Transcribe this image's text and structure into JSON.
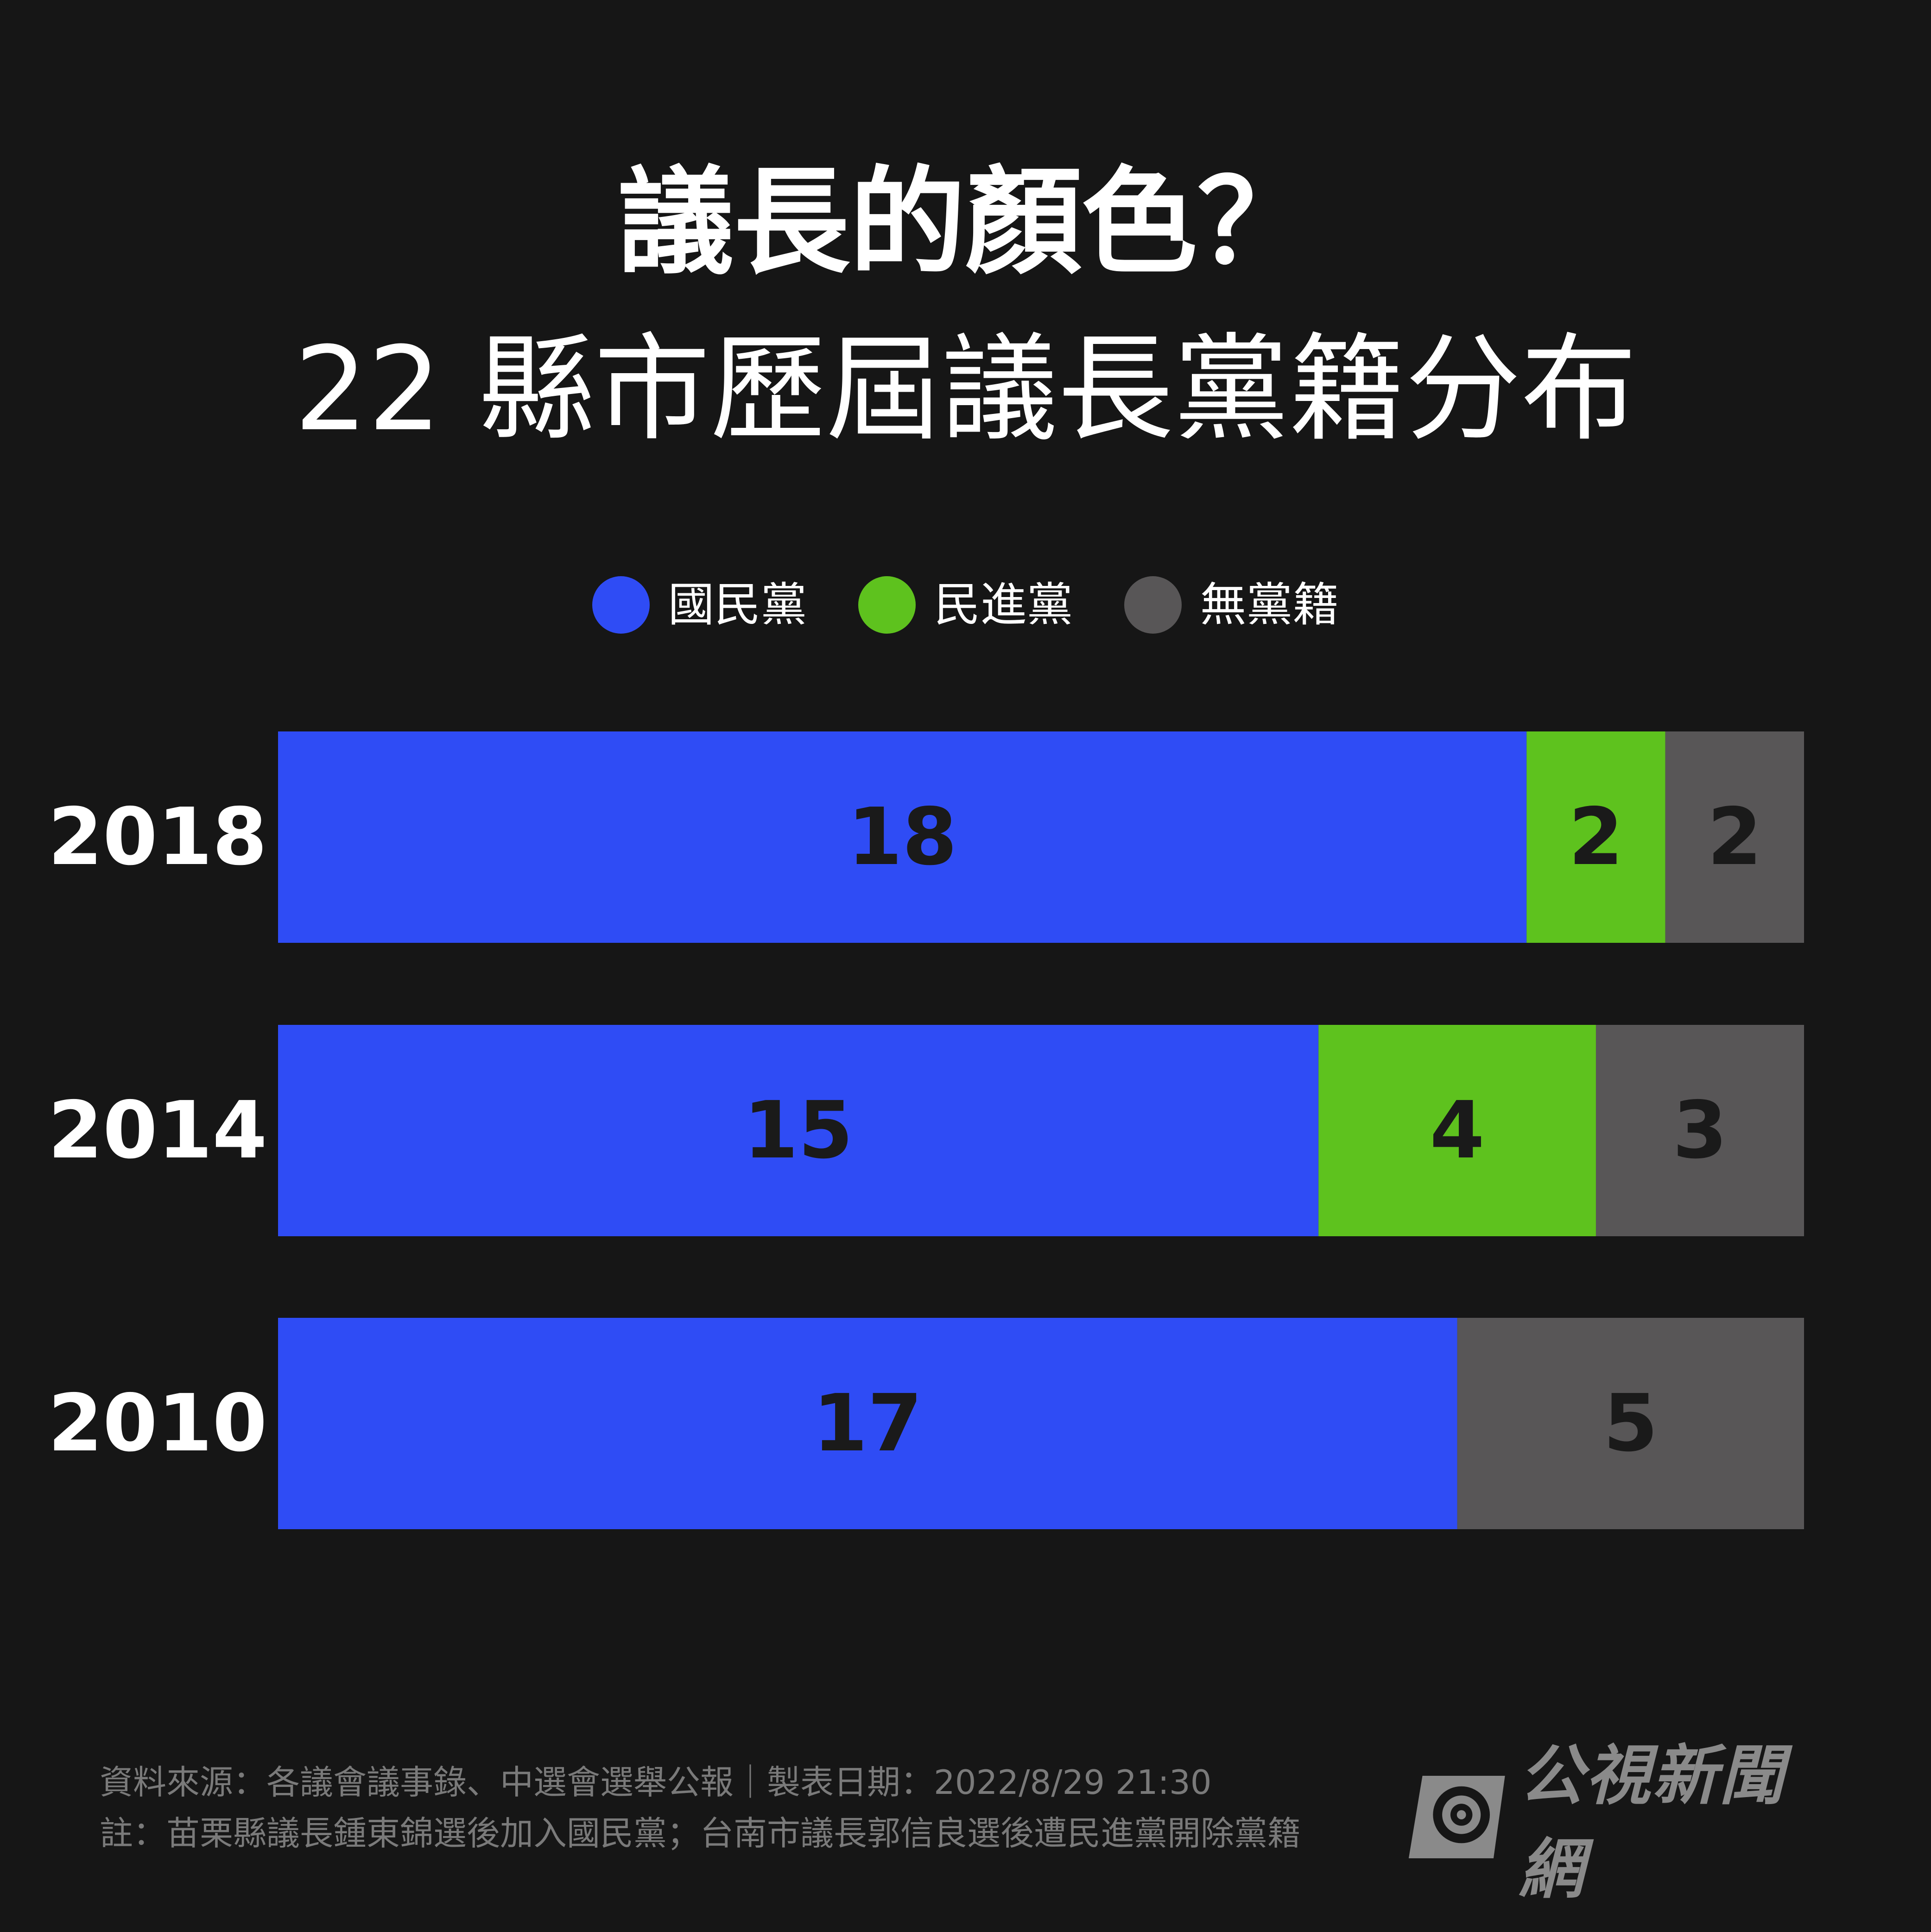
{
  "title": "議長的顏色？",
  "subtitle": "22 縣市歷屆議長黨籍分布",
  "legend": [
    {
      "label": "國民黨",
      "color": "#2f4cf5"
    },
    {
      "label": "民進黨",
      "color": "#5ec21e"
    },
    {
      "label": "無黨籍",
      "color": "#585657"
    }
  ],
  "chart_data": {
    "type": "bar",
    "orientation": "horizontal",
    "stacked": true,
    "categories": [
      "2018",
      "2014",
      "2010"
    ],
    "total": 22,
    "series": [
      {
        "name": "國民黨",
        "color": "#2f4cf5",
        "values": [
          18,
          15,
          17
        ]
      },
      {
        "name": "民進黨",
        "color": "#5ec21e",
        "values": [
          2,
          4,
          0
        ]
      },
      {
        "name": "無黨籍",
        "color": "#585657",
        "values": [
          2,
          3,
          5
        ]
      }
    ],
    "legend_position": "top-center",
    "grid": false
  },
  "footer": {
    "source": "資料來源：各議會議事錄、中選會選舉公報｜製表日期：2022/8/29 21:30",
    "note": "註：苗栗縣議長鍾東錦選後加入國民黨；台南市議長郭信良選後遭民進黨開除黨籍"
  },
  "logo": {
    "text": "公視新聞網",
    "icon": "pts-logo-icon"
  }
}
